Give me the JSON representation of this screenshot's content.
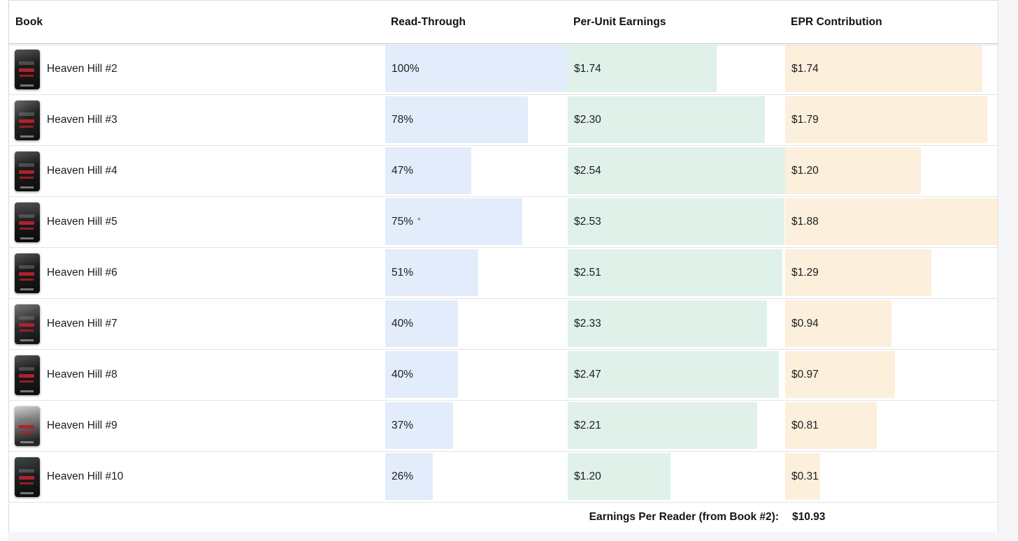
{
  "colors": {
    "read_through_bar": "#e3ecfa",
    "per_unit_bar": "#e0f1ea",
    "epr_bar": "#fcefdc"
  },
  "table": {
    "columns": [
      "Book",
      "Read-Through",
      "Per-Unit Earnings",
      "EPR Contribution"
    ],
    "rows": [
      {
        "book": "Heaven Hill #2",
        "read_through": "100%",
        "note": "",
        "read_through_pct": 100,
        "per_unit": "$1.74",
        "per_unit_pct": 68.5,
        "epr": "$1.74",
        "epr_pct": 92.6
      },
      {
        "book": "Heaven Hill #3",
        "read_through": "78%",
        "note": "",
        "read_through_pct": 78,
        "per_unit": "$2.30",
        "per_unit_pct": 90.6,
        "epr": "$1.79",
        "epr_pct": 95.2
      },
      {
        "book": "Heaven Hill #4",
        "read_through": "47%",
        "note": "",
        "read_through_pct": 47,
        "per_unit": "$2.54",
        "per_unit_pct": 100,
        "epr": "$1.20",
        "epr_pct": 63.8
      },
      {
        "book": "Heaven Hill #5",
        "read_through": "75%",
        "note": "*",
        "read_through_pct": 75,
        "per_unit": "$2.53",
        "per_unit_pct": 99.6,
        "epr": "$1.88",
        "epr_pct": 100
      },
      {
        "book": "Heaven Hill #6",
        "read_through": "51%",
        "note": "",
        "read_through_pct": 51,
        "per_unit": "$2.51",
        "per_unit_pct": 98.8,
        "epr": "$1.29",
        "epr_pct": 68.6
      },
      {
        "book": "Heaven Hill #7",
        "read_through": "40%",
        "note": "",
        "read_through_pct": 40,
        "per_unit": "$2.33",
        "per_unit_pct": 91.7,
        "epr": "$0.94",
        "epr_pct": 50.0
      },
      {
        "book": "Heaven Hill #8",
        "read_through": "40%",
        "note": "",
        "read_through_pct": 40,
        "per_unit": "$2.47",
        "per_unit_pct": 97.2,
        "epr": "$0.97",
        "epr_pct": 51.6
      },
      {
        "book": "Heaven Hill #9",
        "read_through": "37%",
        "note": "",
        "read_through_pct": 37,
        "per_unit": "$2.21",
        "per_unit_pct": 87.0,
        "epr": "$0.81",
        "epr_pct": 43.1
      },
      {
        "book": "Heaven Hill #10",
        "read_through": "26%",
        "note": "",
        "read_through_pct": 26,
        "per_unit": "$1.20",
        "per_unit_pct": 47.2,
        "epr": "$0.31",
        "epr_pct": 16.5
      }
    ],
    "footer": {
      "label": "Earnings Per Reader (from Book #2):",
      "value": "$10.93"
    }
  }
}
